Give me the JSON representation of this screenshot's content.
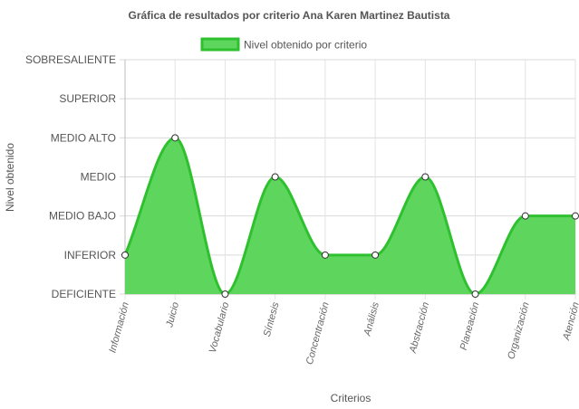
{
  "chart_data": {
    "type": "area",
    "title": "Gráfica de resultados por criterio Ana Karen Martinez Bautista",
    "xlabel": "Criterios",
    "ylabel": "Nivel obtenido",
    "categories": [
      "Información",
      "Juicio",
      "Vocabulario",
      "Síntesis",
      "Concentración",
      "Análisis",
      "Abstracción",
      "Planeación",
      "Organización",
      "Atención"
    ],
    "y_levels": [
      "DEFICIENTE",
      "INFERIOR",
      "MEDIO BAJO",
      "MEDIO",
      "MEDIO ALTO",
      "SUPERIOR",
      "SOBRESALIENTE"
    ],
    "ylim": [
      0,
      6
    ],
    "series": [
      {
        "name": "Nivel obtenido por criterio",
        "values": [
          1,
          4,
          0,
          3,
          1,
          1,
          3,
          0,
          2,
          2
        ],
        "color": "#2ec02e",
        "fill": "#5ed65e"
      }
    ],
    "legend_position": "top",
    "grid": true
  }
}
